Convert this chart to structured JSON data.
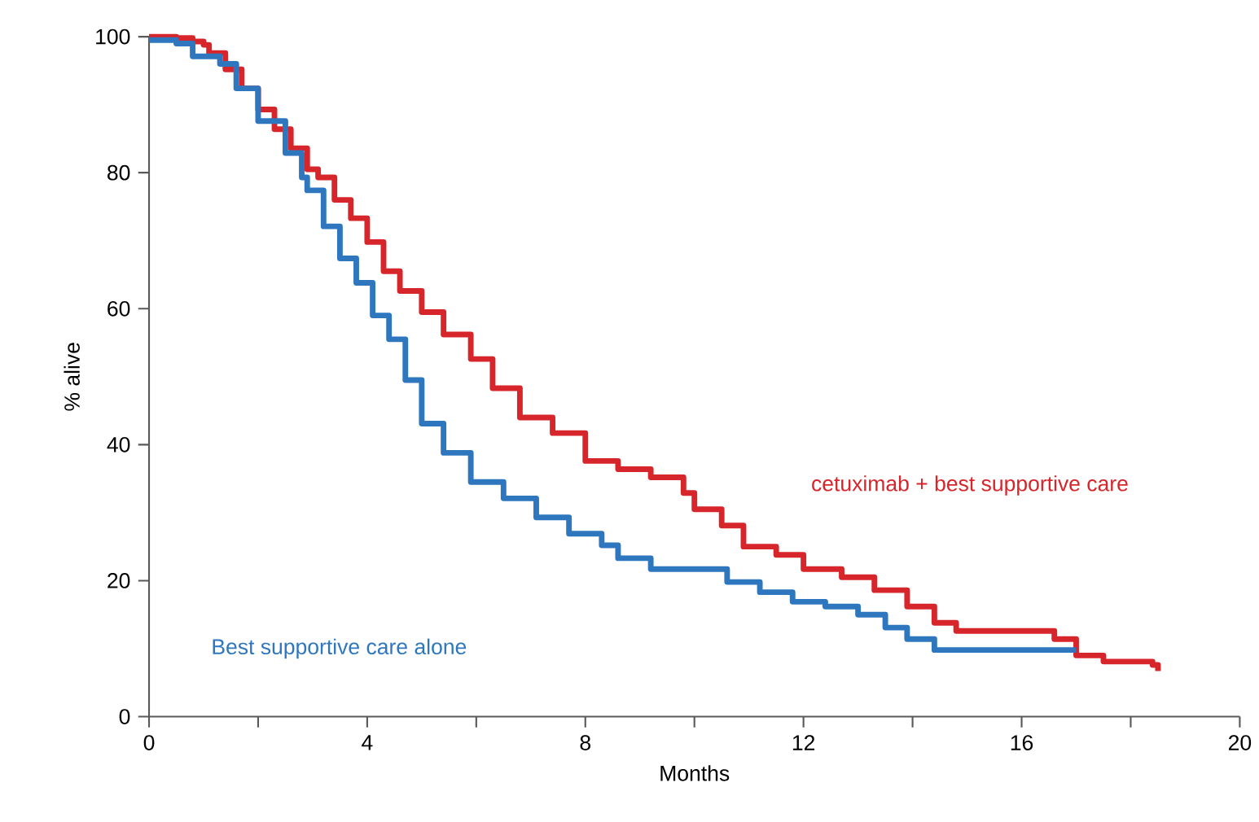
{
  "chart_data": {
    "type": "step",
    "xlabel": "Months",
    "ylabel": "% alive",
    "xlim": [
      0,
      20
    ],
    "ylim": [
      0,
      100
    ],
    "xticks": [
      0,
      {
        "value": 2,
        "label": null
      },
      4,
      {
        "value": 6,
        "label": null
      },
      8,
      {
        "value": 10,
        "label": null
      },
      12,
      {
        "value": 14,
        "label": null
      },
      16,
      {
        "value": 18,
        "label": null
      },
      20
    ],
    "yticks": [
      0,
      20,
      40,
      60,
      80,
      100
    ],
    "series": [
      {
        "name": "cetuximab + best supportive care",
        "color": "#d7262b",
        "x": [
          0,
          0.5,
          0.8,
          1.0,
          1.1,
          1.4,
          1.7,
          2.0,
          2.3,
          2.6,
          2.9,
          3.1,
          3.4,
          3.7,
          4.0,
          4.3,
          4.6,
          5.0,
          5.4,
          5.9,
          6.3,
          6.8,
          7.4,
          8.0,
          8.6,
          9.2,
          9.8,
          10.0,
          10.5,
          10.9,
          11.5,
          12.0,
          12.7,
          13.3,
          13.9,
          14.4,
          14.8,
          16.0,
          16.6,
          17.0,
          17.5,
          18.4,
          18.5
        ],
        "values": [
          100,
          99.8,
          99.3,
          98.8,
          97.6,
          95.2,
          92.4,
          89.3,
          86.4,
          83.6,
          80.5,
          79.3,
          76,
          73.3,
          69.8,
          65.5,
          62.6,
          59.5,
          56.2,
          52.6,
          48.3,
          44,
          41.7,
          37.6,
          36.4,
          35.2,
          32.9,
          30.5,
          28.1,
          25,
          23.8,
          21.7,
          20.5,
          18.6,
          16.2,
          13.8,
          12.6,
          12.6,
          11.4,
          9,
          8.1,
          7.6,
          6.7
        ]
      },
      {
        "name": "Best supportive care alone",
        "color": "#2e77bf",
        "x": [
          0,
          0.5,
          0.8,
          1.3,
          1.6,
          2.0,
          2.5,
          2.8,
          2.9,
          3.2,
          3.5,
          3.8,
          4.1,
          4.4,
          4.7,
          5.0,
          5.4,
          5.9,
          6.5,
          7.1,
          7.7,
          8.3,
          8.6,
          9.2,
          10.0,
          10.6,
          11.2,
          11.8,
          12.4,
          13.0,
          13.5,
          13.9,
          14.4,
          17.0
        ],
        "values": [
          99.5,
          99,
          97.1,
          96,
          92.4,
          87.6,
          82.9,
          79.3,
          77.4,
          72.1,
          67.4,
          63.8,
          59,
          55.5,
          49.5,
          43.1,
          38.8,
          34.5,
          32.1,
          29.3,
          26.9,
          25.2,
          23.3,
          21.7,
          21.7,
          19.8,
          18.3,
          16.9,
          16.2,
          15,
          13.1,
          11.4,
          9.8,
          9.8
        ]
      }
    ]
  }
}
